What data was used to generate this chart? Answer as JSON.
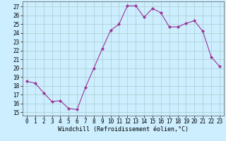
{
  "x": [
    0,
    1,
    2,
    3,
    4,
    5,
    6,
    7,
    8,
    9,
    10,
    11,
    12,
    13,
    14,
    15,
    16,
    17,
    18,
    19,
    20,
    21,
    22,
    23
  ],
  "y": [
    18.5,
    18.3,
    17.2,
    16.2,
    16.3,
    15.4,
    15.3,
    17.8,
    20.0,
    22.2,
    24.3,
    25.0,
    27.1,
    27.1,
    25.8,
    26.8,
    26.3,
    24.7,
    24.7,
    25.1,
    25.4,
    24.2,
    21.3,
    20.2
  ],
  "line_color": "#993399",
  "marker": "D",
  "marker_size": 2,
  "bg_color": "#cceeff",
  "grid_color": "#aacccc",
  "xlabel": "Windchill (Refroidissement éolien,°C)",
  "ylabel_ticks": [
    15,
    16,
    17,
    18,
    19,
    20,
    21,
    22,
    23,
    24,
    25,
    26,
    27
  ],
  "ylim": [
    14.6,
    27.6
  ],
  "xlim": [
    -0.5,
    23.5
  ],
  "tick_fontsize": 5.5,
  "xlabel_fontsize": 6.0
}
